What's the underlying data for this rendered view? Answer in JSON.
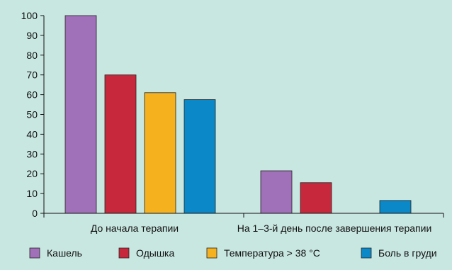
{
  "chart_data": {
    "type": "bar",
    "categories": [
      "До начала терапии",
      "На 1–3-й день после завершения терапии"
    ],
    "series": [
      {
        "name": "Кашель",
        "values": [
          100,
          21.5
        ],
        "color": "#a070b8"
      },
      {
        "name": "Одышка",
        "values": [
          70,
          15.5
        ],
        "color": "#c8283c"
      },
      {
        "name": "Температура > 38 °C",
        "values": [
          61,
          0
        ],
        "color": "#f5b21e"
      },
      {
        "name": "Боль в груди",
        "values": [
          57.5,
          6.5
        ],
        "color": "#0a88c8"
      }
    ],
    "yticks": [
      0,
      10,
      20,
      30,
      40,
      50,
      60,
      70,
      80,
      90,
      100
    ],
    "ylim": [
      0,
      100
    ],
    "grid": false,
    "legend": "bottom",
    "title": "",
    "xlabel": "",
    "ylabel": ""
  },
  "colors": {
    "background": "#c9e7e1",
    "axis": "#111111"
  }
}
